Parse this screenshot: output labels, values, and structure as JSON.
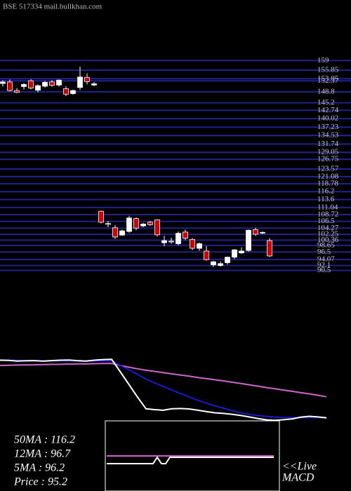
{
  "chart_data": {
    "type": "candlestick",
    "title": "BSE 517334 mail.bullkhan.com",
    "ylim": [
      89,
      157
    ],
    "yticks": [
      159,
      155.85,
      153.05,
      152.37,
      148.8,
      145.2,
      142.74,
      140.02,
      137.23,
      134.53,
      131.74,
      129.05,
      126.75,
      123.57,
      121.08,
      118.78,
      116.2,
      113.6,
      111.04,
      108.72,
      106.5,
      104.27,
      102.25,
      100.36,
      98.65,
      96.5,
      94.07,
      92.1,
      90.5
    ],
    "grid_color": "#22228f",
    "up_color": "#ffffff",
    "down_color": "#cc0000",
    "open": [
      151.5,
      152.0,
      149.2,
      150.5,
      152.4,
      149.3,
      150.6,
      152.0,
      151.0,
      149.8,
      148.2,
      150.2,
      153.5,
      151.0,
      109.8,
      105.8,
      104.4,
      102.0,
      103.2,
      107.4,
      105.0,
      106.2,
      107.0,
      99.5,
      100.0,
      99.2,
      103.0,
      100.6,
      97.7,
      96.8,
      92.3,
      92.1,
      93.0,
      94.8,
      96.2,
      97.0,
      103.8,
      102.7,
      100.2
    ],
    "high": [
      152.6,
      152.8,
      150.0,
      151.6,
      152.9,
      151.2,
      152.3,
      152.6,
      152.8,
      150.6,
      149.5,
      157.0,
      154.8,
      151.9,
      110.0,
      106.6,
      105.2,
      103.8,
      108.3,
      107.8,
      106.0,
      106.6,
      107.2,
      101.8,
      101.2,
      103.2,
      103.8,
      101.0,
      99.6,
      98.4,
      93.6,
      93.4,
      95.0,
      97.4,
      98.0,
      103.8,
      104.4,
      103.2,
      101.0
    ],
    "low": [
      150.6,
      148.9,
      148.3,
      149.6,
      149.6,
      148.6,
      150.2,
      150.4,
      150.5,
      147.4,
      147.8,
      149.4,
      151.2,
      150.6,
      105.8,
      104.6,
      100.8,
      101.8,
      102.8,
      103.6,
      104.6,
      105.0,
      101.6,
      98.4,
      99.2,
      98.7,
      100.4,
      97.1,
      96.9,
      93.7,
      91.6,
      91.7,
      92.4,
      94.2,
      95.9,
      96.6,
      101.8,
      102.3,
      94.8
    ],
    "close": [
      152.0,
      149.2,
      148.6,
      151.2,
      150.0,
      150.8,
      151.9,
      150.9,
      152.6,
      148.0,
      149.2,
      153.6,
      152.1,
      151.4,
      106.2,
      105.5,
      101.4,
      103.4,
      107.6,
      104.3,
      105.6,
      105.4,
      102.1,
      100.2,
      99.8,
      102.6,
      101.0,
      97.7,
      99.2,
      94.0,
      93.3,
      92.7,
      94.8,
      97.2,
      96.8,
      103.6,
      102.3,
      102.9,
      95.2
    ],
    "indicators": {
      "ylim": [
        90,
        160
      ],
      "series": [
        {
          "color": "#cc66cc",
          "values": [
            146.0,
            146.2,
            146.4,
            146.5,
            146.6,
            146.8,
            147.0,
            147.1,
            147.3,
            147.4,
            147.5,
            147.7,
            147.8,
            147.9,
            146.0,
            144.3,
            142.8,
            141.5,
            140.3,
            139.2,
            138.0,
            136.9,
            135.8,
            134.6,
            133.5,
            132.4,
            131.3,
            130.1,
            128.9,
            127.6,
            126.3,
            125.0,
            123.8,
            122.6,
            121.4,
            120.2,
            119.0,
            117.7,
            116.2
          ]
        },
        {
          "color": "#1a1acc",
          "values": [
            151.2,
            151.0,
            150.8,
            150.6,
            150.7,
            150.5,
            150.6,
            150.4,
            150.5,
            150.2,
            149.9,
            150.3,
            150.5,
            150.4,
            146.0,
            141.8,
            137.4,
            133.2,
            129.3,
            126.0,
            122.6,
            119.4,
            116.2,
            113.0,
            110.2,
            107.7,
            105.4,
            103.2,
            101.0,
            99.6,
            98.4,
            97.6,
            97.0,
            96.6,
            96.4,
            96.3,
            96.4,
            96.6,
            96.7
          ]
        },
        {
          "color": "#ffffff",
          "values": [
            151.0,
            150.8,
            150.2,
            150.4,
            150.6,
            150.1,
            150.6,
            151.0,
            151.2,
            150.6,
            150.2,
            151.0,
            151.6,
            151.8,
            140.0,
            128.0,
            116.0,
            104.8,
            104.0,
            103.4,
            104.8,
            105.1,
            104.7,
            103.5,
            102.2,
            101.0,
            100.4,
            99.6,
            98.5,
            97.1,
            95.6,
            94.3,
            93.8,
            94.4,
            95.2,
            96.8,
            97.7,
            97.1,
            96.2
          ]
        }
      ]
    },
    "stats": [
      "50MA : 116.2",
      "12MA : 96.7",
      "5MA : 96.2",
      "Price   : 95.2"
    ],
    "macd_label": [
      "<<Live",
      "MACD"
    ]
  }
}
